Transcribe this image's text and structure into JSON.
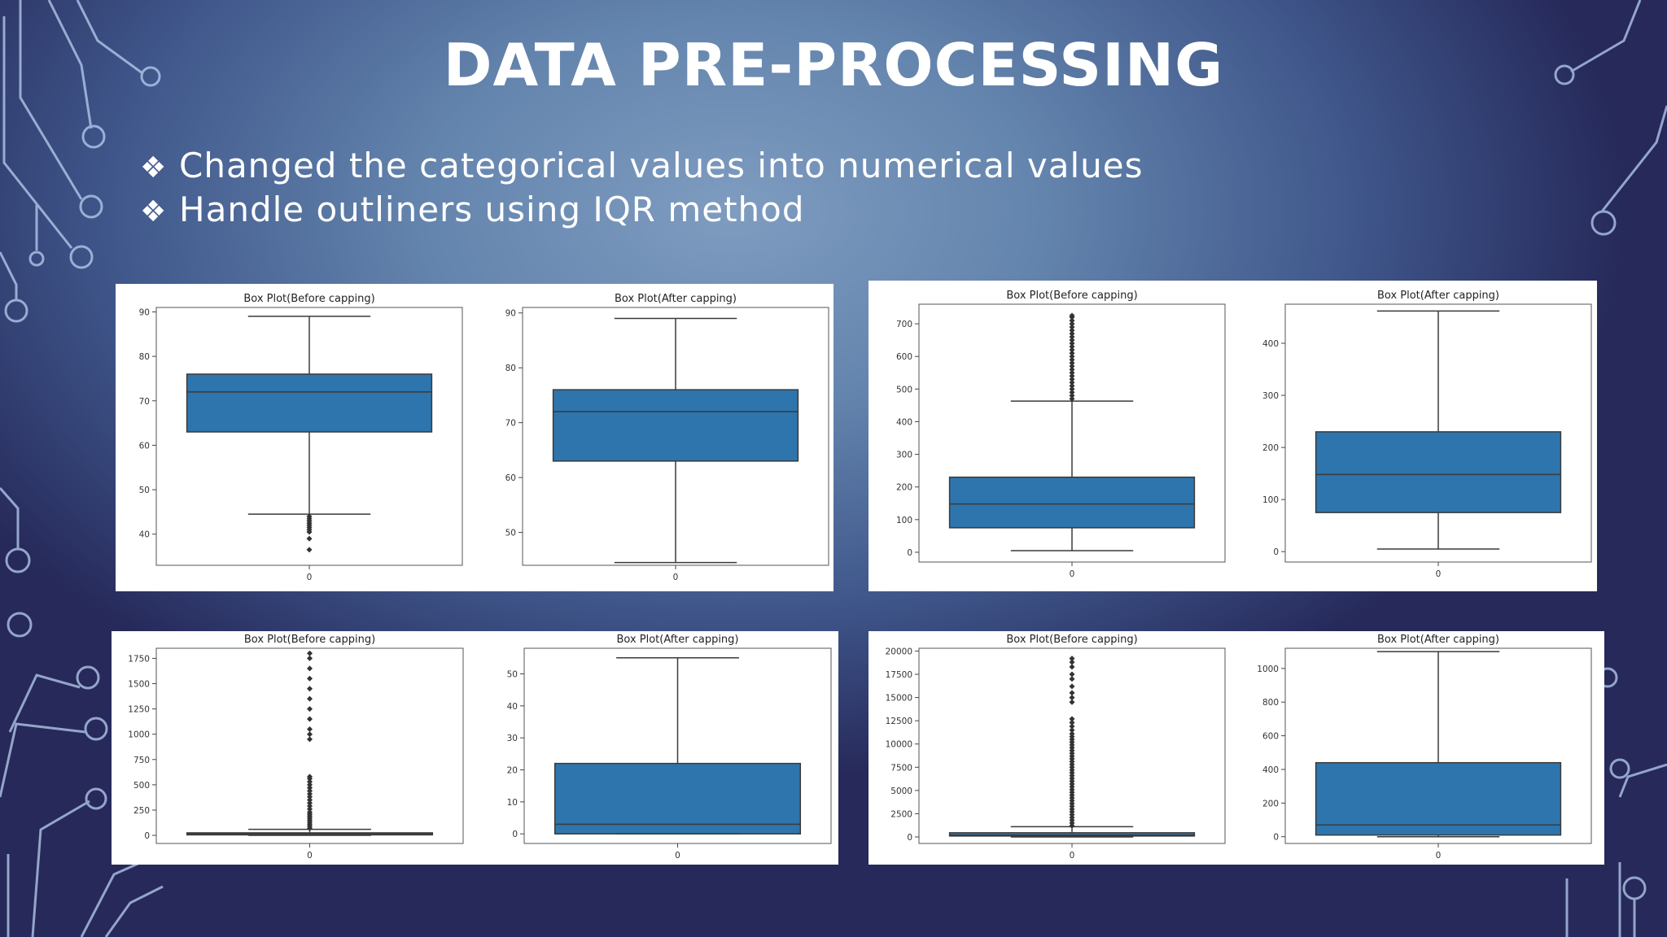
{
  "slide": {
    "title": "DATA PRE-PROCESSING",
    "bullet_marker": "❖",
    "bullets": [
      "Changed the categorical values into numerical values",
      "Handle outliners using IQR method"
    ]
  },
  "colors": {
    "box_fill": "#2e75ad",
    "box_edge": "#3a3a3a",
    "circuit_line": "#b9cff0"
  },
  "chart_data": [
    {
      "type": "box",
      "title": "Box Plot(Before capping)",
      "x_tick": "0",
      "ylim": [
        33,
        91
      ],
      "yticks": [
        40,
        50,
        60,
        70,
        80,
        90
      ],
      "whisker_low": 44.5,
      "q1": 63,
      "median": 72,
      "q3": 76,
      "whisker_high": 89,
      "outliers": [
        44,
        43.5,
        43,
        42.5,
        42,
        41.5,
        41,
        40.5,
        39,
        36.5
      ]
    },
    {
      "type": "box",
      "title": "Box Plot(After capping)",
      "x_tick": "0",
      "ylim": [
        44,
        91
      ],
      "yticks": [
        50,
        60,
        70,
        80,
        90
      ],
      "whisker_low": 44.5,
      "q1": 63,
      "median": 72,
      "q3": 76,
      "whisker_high": 89,
      "outliers": []
    },
    {
      "type": "box",
      "title": "Box Plot(Before capping)",
      "x_tick": "0",
      "ylim": [
        -30,
        760
      ],
      "yticks": [
        0,
        100,
        200,
        300,
        400,
        500,
        600,
        700
      ],
      "whisker_low": 5,
      "q1": 75,
      "median": 148,
      "q3": 230,
      "whisker_high": 463,
      "outliers": [
        470,
        480,
        490,
        500,
        510,
        520,
        530,
        540,
        550,
        560,
        570,
        580,
        590,
        600,
        610,
        620,
        630,
        640,
        650,
        660,
        670,
        680,
        690,
        700,
        710,
        720,
        725
      ]
    },
    {
      "type": "box",
      "title": "Box Plot(After capping)",
      "x_tick": "0",
      "ylim": [
        -20,
        475
      ],
      "yticks": [
        0,
        100,
        200,
        300,
        400
      ],
      "whisker_low": 5,
      "q1": 75,
      "median": 148,
      "q3": 230,
      "whisker_high": 462,
      "outliers": []
    },
    {
      "type": "box",
      "title": "Box Plot(Before capping)",
      "x_tick": "0",
      "ylim": [
        -80,
        1850
      ],
      "yticks": [
        0,
        250,
        500,
        750,
        1000,
        1250,
        1500,
        1750
      ],
      "whisker_low": 0,
      "q1": 5,
      "median": 15,
      "q3": 25,
      "whisker_high": 60,
      "outliers": [
        70,
        90,
        110,
        130,
        150,
        170,
        190,
        210,
        230,
        260,
        290,
        320,
        350,
        380,
        410,
        440,
        470,
        500,
        530,
        560,
        580,
        950,
        1000,
        1050,
        1150,
        1250,
        1350,
        1450,
        1550,
        1650,
        1750,
        1800
      ]
    },
    {
      "type": "box",
      "title": "Box Plot(After capping)",
      "x_tick": "0",
      "ylim": [
        -3,
        58
      ],
      "yticks": [
        0,
        10,
        20,
        30,
        40,
        50
      ],
      "whisker_low": 0,
      "q1": 0,
      "median": 3,
      "q3": 22,
      "whisker_high": 55,
      "outliers": []
    },
    {
      "type": "box",
      "title": "Box Plot(Before capping)",
      "x_tick": "0",
      "ylim": [
        -700,
        20300
      ],
      "yticks": [
        0,
        2500,
        5000,
        7500,
        10000,
        12500,
        15000,
        17500,
        20000
      ],
      "whisker_low": 0,
      "q1": 100,
      "median": 200,
      "q3": 450,
      "whisker_high": 1100,
      "outliers": [
        1200,
        1500,
        1800,
        2100,
        2400,
        2700,
        3000,
        3300,
        3600,
        3900,
        4200,
        4500,
        4800,
        5100,
        5400,
        5700,
        6000,
        6300,
        6600,
        6900,
        7200,
        7500,
        7800,
        8100,
        8400,
        8700,
        9000,
        9300,
        9600,
        9900,
        10200,
        10500,
        10800,
        11100,
        11500,
        11900,
        12300,
        12700,
        14500,
        15000,
        15500,
        16200,
        17000,
        17500,
        18300,
        18800,
        19200
      ]
    },
    {
      "type": "box",
      "title": "Box Plot(After capping)",
      "x_tick": "0",
      "ylim": [
        -40,
        1120
      ],
      "yticks": [
        0,
        200,
        400,
        600,
        800,
        1000
      ],
      "whisker_low": 0,
      "q1": 10,
      "median": 70,
      "q3": 440,
      "whisker_high": 1100,
      "outliers": []
    }
  ]
}
